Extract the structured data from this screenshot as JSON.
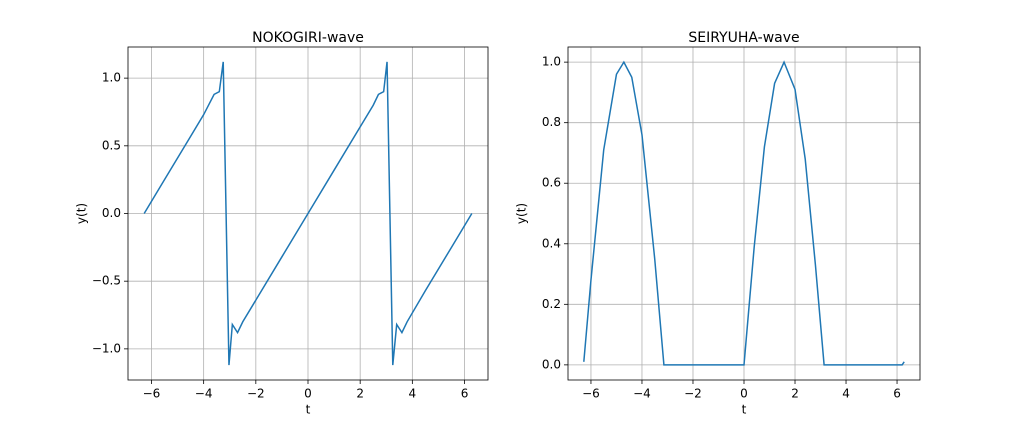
{
  "chart_data": [
    {
      "type": "line",
      "title": "NOKOGIRI-wave",
      "x_label": "t",
      "y_label": "y(t)",
      "grid": true,
      "xlim": [
        -6.9,
        6.9
      ],
      "ylim": [
        -1.23,
        1.23
      ],
      "xticks": [
        {
          "value": -6,
          "label": "−6"
        },
        {
          "value": -4,
          "label": "−4"
        },
        {
          "value": -2,
          "label": "−2"
        },
        0,
        2,
        4,
        6
      ],
      "yticks": [
        {
          "value": -1,
          "label": "−1.0"
        },
        {
          "value": -0.5,
          "label": "−0.5"
        },
        {
          "value": 0,
          "label": "0.0"
        },
        0.5,
        {
          "value": 1,
          "label": "1.0"
        }
      ],
      "series": [
        {
          "color": "#1f77b4",
          "x": [
            -6.28,
            -5.5,
            -4.5,
            -4,
            -3.6,
            -3.4,
            -3.25,
            -3.14,
            -3.03,
            -2.9,
            -2.7,
            -2.5,
            -2,
            -1,
            0,
            1,
            2,
            2.5,
            2.7,
            2.9,
            3.03,
            3.14,
            3.25,
            3.4,
            3.6,
            3.8,
            4.5,
            5.5,
            6.28
          ],
          "values": [
            0,
            0.25,
            0.57,
            0.73,
            0.88,
            0.9,
            1.12,
            0,
            -1.12,
            -0.82,
            -0.88,
            -0.8,
            -0.64,
            -0.32,
            0,
            0.32,
            0.64,
            0.8,
            0.88,
            0.9,
            1.12,
            0,
            -1.12,
            -0.82,
            -0.88,
            -0.8,
            -0.57,
            -0.25,
            0
          ]
        }
      ]
    },
    {
      "type": "line",
      "title": "SEIRYUHA-wave",
      "x_label": "t",
      "y_label": "y(t)",
      "grid": true,
      "xlim": [
        -6.9,
        6.9
      ],
      "ylim": [
        -0.05,
        1.05
      ],
      "xticks": [
        {
          "value": -6,
          "label": "−6"
        },
        {
          "value": -4,
          "label": "−4"
        },
        {
          "value": -2,
          "label": "−2"
        },
        0,
        2,
        4,
        6
      ],
      "yticks": [
        {
          "value": 0,
          "label": "0.0"
        },
        0.2,
        0.4,
        0.6,
        0.8,
        {
          "value": 1,
          "label": "1.0"
        }
      ],
      "series": [
        {
          "color": "#1f77b4",
          "x": [
            -6.28,
            -6,
            -5.5,
            -5,
            -4.71,
            -4.4,
            -4,
            -3.5,
            -3.14,
            0,
            0.4,
            0.8,
            1.2,
            1.57,
            2,
            2.4,
            2.8,
            3.14,
            6.2,
            6.28
          ],
          "values": [
            0.01,
            0.28,
            0.71,
            0.96,
            1.0,
            0.95,
            0.76,
            0.35,
            0,
            0,
            0.39,
            0.72,
            0.93,
            1.0,
            0.91,
            0.68,
            0.33,
            0,
            0,
            0.01
          ]
        }
      ]
    }
  ]
}
